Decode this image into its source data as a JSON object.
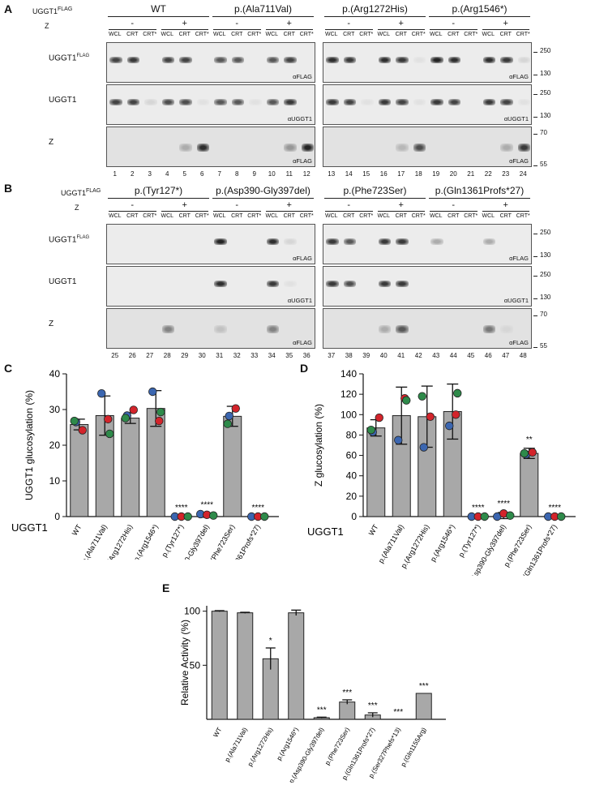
{
  "panelA": {
    "letter": "A",
    "ugg_label": "UGGT1",
    "ugg_sup": "FLAG",
    "z_label": "Z",
    "groups": [
      "WT",
      "p.(Ala711Val)",
      "p.(Arg1272His)",
      "p.(Arg1546*)"
    ],
    "z_signs": [
      "-",
      "+",
      "-",
      "+",
      "-",
      "+",
      "-",
      "+"
    ],
    "lane_labels": [
      "WCL",
      "CRT",
      "CRT*",
      "WCL",
      "CRT",
      "CRT*",
      "WCL",
      "CRT",
      "CRT*",
      "WCL",
      "CRT",
      "CRT*",
      "WCL",
      "CRT",
      "CRT*",
      "WCL",
      "CRT",
      "CRT*",
      "WCL",
      "CRT",
      "CRT*",
      "WCL",
      "CRT",
      "CRT*"
    ],
    "row_labels": [
      "UGGT1FLAG",
      "UGGT1",
      "Z"
    ],
    "antibodies": [
      "αFLAG",
      "αUGGT1",
      "αFLAG"
    ],
    "mw": [
      "250",
      "130",
      "250",
      "130",
      "70",
      "55"
    ],
    "lane_numbers": [
      "1",
      "2",
      "3",
      "4",
      "5",
      "6",
      "7",
      "8",
      "9",
      "10",
      "11",
      "12",
      "13",
      "14",
      "15",
      "16",
      "17",
      "18",
      "19",
      "20",
      "21",
      "22",
      "23",
      "24"
    ]
  },
  "panelB": {
    "letter": "B",
    "groups": [
      "p.(Tyr127*)",
      "p.(Asp390-Gly397del)",
      "p.(Phe723Ser)",
      "p.(Gln1361Profs*27)"
    ],
    "antibodies": [
      "αFLAG",
      "αUGGT1",
      "αFLAG"
    ],
    "lane_numbers": [
      "25",
      "26",
      "27",
      "28",
      "29",
      "30",
      "31",
      "32",
      "33",
      "34",
      "35",
      "36",
      "37",
      "38",
      "39",
      "40",
      "41",
      "42",
      "43",
      "44",
      "45",
      "46",
      "47",
      "48"
    ]
  },
  "chartC": {
    "letter": "C",
    "ylabel": "UGGT1 glucosylation (%)",
    "xgroup_label": "UGGT1",
    "yticks": [
      "0",
      "10",
      "20",
      "30",
      "40"
    ],
    "categories": [
      "WT",
      "p.(Ala711Val)",
      "p.(Arg1272His)",
      "p.(Arg1546*)",
      "p.(Tyr127*)",
      "p.(Asp390-Gly397del)",
      "p.(Phe723Ser)",
      "p.(Gln1361Profs*27)"
    ],
    "significance": [
      "",
      "",
      "",
      "",
      "****",
      "****",
      "",
      "****"
    ]
  },
  "chartD": {
    "letter": "D",
    "ylabel": "Z glucosylation (%)",
    "xgroup_label": "UGGT1",
    "yticks": [
      "0",
      "20",
      "40",
      "60",
      "80",
      "100",
      "120",
      "140"
    ],
    "categories": [
      "WT",
      "p.(Ala711Val)",
      "p.(Arg1272His)",
      "p.(Arg1546*)",
      "p.(Tyr127*)",
      "p.(Asp390-Gly397del)",
      "p.(Phe723Ser)",
      "p.(Gln1361Profs*27)"
    ],
    "significance": [
      "",
      "",
      "",
      "",
      "****",
      "****",
      "**",
      "****"
    ]
  },
  "chartE": {
    "letter": "E",
    "ylabel": "Relative Activity (%)",
    "yticks": [
      "50",
      "100"
    ],
    "categories": [
      "WT",
      "p.(Ala711Val)",
      "p.(Arg1272His)",
      "p.(Arg1546*)",
      "p.(Asp390-Gly397del)",
      "p.(Phe723Ser)",
      "p.(Gln1361Profs*27)",
      "p.(Ser327Phefs*13)",
      "p.(Gln1155Arg)"
    ],
    "significance": [
      "",
      "",
      "*",
      "",
      "***",
      "***",
      "***",
      "***",
      "***"
    ]
  },
  "chart_data": [
    {
      "type": "bar",
      "title": "",
      "ylabel": "UGGT1 glucosylation (%)",
      "xlabel": "UGGT1",
      "ylim": [
        0,
        40
      ],
      "categories": [
        "WT",
        "p.(Ala711Val)",
        "p.(Arg1272His)",
        "p.(Arg1546*)",
        "p.(Tyr127*)",
        "p.(Asp390-Gly397del)",
        "p.(Phe723Ser)",
        "p.(Gln1361Profs*27)"
      ],
      "values": [
        25.8,
        28.3,
        27.6,
        30.3,
        0,
        0.3,
        28.1,
        0
      ],
      "errors": [
        1.5,
        5.5,
        1.5,
        5.0,
        0,
        0.5,
        2.8,
        0
      ],
      "points": {
        "blue": [
          26.5,
          34.5,
          28.3,
          35.0,
          0,
          0.7,
          28.2,
          0
        ],
        "red": [
          24.2,
          27.3,
          29.9,
          26.8,
          0,
          0.5,
          30.3,
          0
        ],
        "green": [
          26.8,
          23.2,
          27.6,
          29.3,
          0,
          0.3,
          26.0,
          0
        ]
      },
      "point_colors": {
        "blue": "#3b66b0",
        "red": "#d3242b",
        "green": "#2e8a4a"
      }
    },
    {
      "type": "bar",
      "title": "",
      "ylabel": "Z glucosylation (%)",
      "xlabel": "UGGT1",
      "ylim": [
        0,
        140
      ],
      "categories": [
        "WT",
        "p.(Ala711Val)",
        "p.(Arg1272His)",
        "p.(Arg1546*)",
        "p.(Tyr127*)",
        "p.(Asp390-Gly397del)",
        "p.(Phe723Ser)",
        "p.(Gln1361Profs*27)"
      ],
      "values": [
        87,
        99,
        98,
        103,
        0,
        1,
        62,
        0
      ],
      "errors": [
        8,
        28,
        30,
        27,
        0,
        3,
        5,
        0
      ],
      "points": {
        "blue": [
          83,
          75,
          68,
          89,
          0,
          0,
          61,
          0
        ],
        "red": [
          97,
          116,
          98,
          100,
          0,
          3,
          63,
          0
        ],
        "green": [
          85,
          114,
          118,
          121,
          0,
          1,
          62,
          0
        ]
      },
      "point_colors": {
        "blue": "#3b66b0",
        "red": "#d3242b",
        "green": "#2e8a4a"
      }
    },
    {
      "type": "bar",
      "title": "",
      "ylabel": "Relative Activity (%)",
      "xlabel": "",
      "ylim": [
        0,
        105
      ],
      "categories": [
        "WT",
        "p.(Ala711Val)",
        "p.(Arg1272His)",
        "p.(Arg1546*)",
        "p.(Asp390-Gly397del)",
        "p.(Phe723Ser)",
        "p.(Gln1361Profs*27)",
        "p.(Ser327Phefs*13)",
        "p.(Gln1155Arg)"
      ],
      "values": [
        100,
        98.5,
        56,
        98.5,
        1.5,
        16,
        4,
        0,
        24
      ],
      "errors": [
        0.5,
        0.5,
        10,
        2.5,
        0.5,
        2,
        2,
        0,
        0
      ]
    }
  ]
}
